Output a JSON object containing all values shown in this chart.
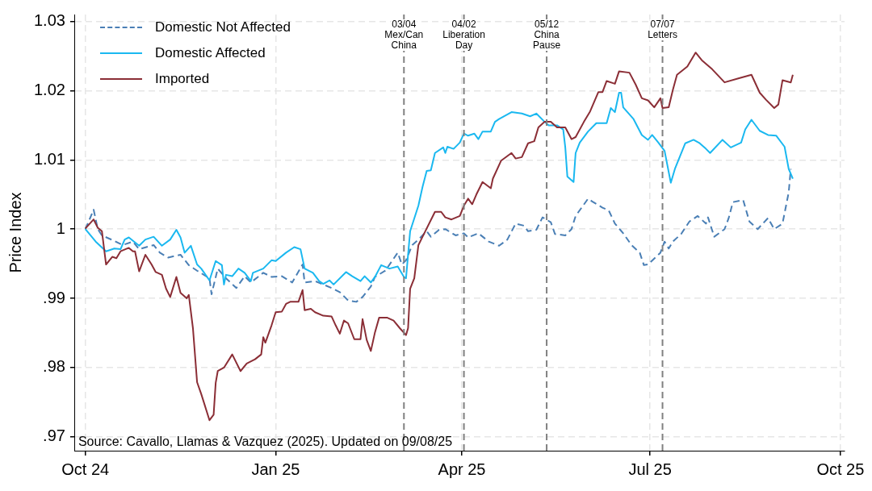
{
  "chart_data": {
    "type": "line",
    "ylabel": "Price Index",
    "xlim": [
      "2024-09-26",
      "2025-10-03"
    ],
    "ylim": [
      0.968,
      1.031
    ],
    "xticks": [
      {
        "value": "2024-10-01",
        "label": "Oct 24"
      },
      {
        "value": "2025-01-01",
        "label": "Jan 25"
      },
      {
        "value": "2025-04-01",
        "label": "Apr 25"
      },
      {
        "value": "2025-07-01",
        "label": "Jul 25"
      },
      {
        "value": "2025-10-01",
        "label": "Oct 25"
      }
    ],
    "yticks": [
      {
        "value": 0.97,
        "label": ".97"
      },
      {
        "value": 0.98,
        "label": ".98"
      },
      {
        "value": 0.99,
        "label": ".99"
      },
      1,
      1.01,
      1.02,
      1.03
    ],
    "grid": true,
    "legend": "top left",
    "marker": "none",
    "ref_lines": [
      {
        "axis": "x",
        "value": "2025-03-04",
        "label": "03/04\nMex/Can\nChina",
        "color": "#808080",
        "line_style": "dashed"
      },
      {
        "axis": "x",
        "value": "2025-04-02",
        "label": "04/02\nLiberation\nDay",
        "color": "#808080",
        "line_style": "dashed"
      },
      {
        "axis": "x",
        "value": "2025-05-12",
        "label": "05/12\nChina\nPause",
        "color": "#808080",
        "line_style": "dashed"
      },
      {
        "axis": "x",
        "value": "2025-07-07",
        "label": "07/07\nLetters",
        "color": "#808080",
        "line_style": "dashed"
      }
    ],
    "annotations": [
      "Source: Cavallo, Llamas & Vazquez (2025). Updated on 09/08/25"
    ],
    "series": [
      {
        "name": "Domestic Not Affected",
        "color": "#4a7fb5",
        "line_style": "dashed",
        "x": [
          "2024-10-01",
          "2024-10-05",
          "2024-10-07",
          "2024-10-09",
          "2024-10-15",
          "2024-10-19",
          "2024-10-24",
          "2024-10-27",
          "2024-11-03",
          "2024-11-06",
          "2024-11-10",
          "2024-11-16",
          "2024-11-20",
          "2024-11-24",
          "2024-11-30",
          "2024-12-01",
          "2024-12-04",
          "2024-12-08",
          "2024-12-13",
          "2024-12-17",
          "2024-12-20",
          "2024-12-26",
          "2024-12-30",
          "2025-01-04",
          "2025-01-09",
          "2025-01-14",
          "2025-01-15",
          "2025-01-20",
          "2025-01-28",
          "2025-02-01",
          "2025-02-05",
          "2025-02-09",
          "2025-02-12",
          "2025-02-16",
          "2025-02-18",
          "2025-02-23",
          "2025-03-01",
          "2025-03-03",
          "2025-03-05",
          "2025-03-08",
          "2025-03-11",
          "2025-03-15",
          "2025-03-17",
          "2025-03-21",
          "2025-03-24",
          "2025-03-29",
          "2025-04-02",
          "2025-04-04",
          "2025-04-09",
          "2025-04-14",
          "2025-04-19",
          "2025-04-23",
          "2025-04-27",
          "2025-05-01",
          "2025-05-03",
          "2025-05-07",
          "2025-05-10",
          "2025-05-14",
          "2025-05-16",
          "2025-05-21",
          "2025-05-24",
          "2025-05-26",
          "2025-06-01",
          "2025-06-03",
          "2025-06-08",
          "2025-06-11",
          "2025-06-14",
          "2025-06-18",
          "2025-06-22",
          "2025-06-26",
          "2025-06-28",
          "2025-06-30",
          "2025-07-06",
          "2025-07-08",
          "2025-07-10",
          "2025-07-12",
          "2025-07-16",
          "2025-07-20",
          "2025-07-24",
          "2025-07-28",
          "2025-07-29",
          "2025-08-01",
          "2025-08-06",
          "2025-08-08",
          "2025-08-10",
          "2025-08-15",
          "2025-08-18",
          "2025-08-22",
          "2025-08-27",
          "2025-08-30",
          "2025-09-03",
          "2025-09-06",
          "2025-09-07"
        ],
        "values": [
          1.0,
          1.0028,
          1.0,
          0.9991,
          0.9983,
          0.9977,
          0.9982,
          0.9971,
          0.9977,
          0.9966,
          0.9959,
          0.9963,
          0.9948,
          0.994,
          0.9929,
          0.9906,
          0.9943,
          0.9929,
          0.9915,
          0.9932,
          0.9923,
          0.9937,
          0.9931,
          0.9932,
          0.9923,
          0.9949,
          0.9923,
          0.9925,
          0.9915,
          0.9909,
          0.9897,
          0.9895,
          0.9902,
          0.9917,
          0.9931,
          0.994,
          0.9966,
          0.9949,
          0.9955,
          0.9977,
          0.9985,
          0.9997,
          0.9989,
          0.9999,
          1.0,
          0.9991,
          0.9994,
          0.9988,
          0.9994,
          0.9982,
          0.9976,
          0.9985,
          1.0008,
          1.0005,
          0.9997,
          0.9999,
          1.0017,
          1.001,
          0.9993,
          0.9991,
          1.0,
          1.0019,
          1.0044,
          1.004,
          1.0031,
          1.0027,
          1.0008,
          0.9994,
          0.9977,
          0.9966,
          0.9948,
          0.9949,
          0.9966,
          0.9982,
          0.9972,
          0.9982,
          0.9993,
          1.0011,
          1.0019,
          1.0008,
          1.0017,
          0.9989,
          1.0,
          1.0016,
          1.0039,
          1.0042,
          1.0011,
          1.0,
          1.0016,
          1.0,
          1.0008,
          1.0053,
          1.0087
        ]
      },
      {
        "name": "Domestic Affected",
        "color": "#1ab8f0",
        "x": [
          "2024-10-01",
          "2024-10-06",
          "2024-10-11",
          "2024-10-15",
          "2024-10-18",
          "2024-10-20",
          "2024-10-22",
          "2024-10-27",
          "2024-10-30",
          "2024-11-03",
          "2024-11-07",
          "2024-11-11",
          "2024-11-14",
          "2024-11-16",
          "2024-11-18",
          "2024-11-21",
          "2024-11-24",
          "2024-11-26",
          "2024-11-30",
          "2024-12-03",
          "2024-12-06",
          "2024-12-07",
          "2024-12-08",
          "2024-12-11",
          "2024-12-14",
          "2024-12-17",
          "2024-12-20",
          "2024-12-21",
          "2024-12-26",
          "2024-12-30",
          "2025-01-01",
          "2025-01-06",
          "2025-01-10",
          "2025-01-13",
          "2025-01-15",
          "2025-01-19",
          "2025-01-22",
          "2025-01-24",
          "2025-01-27",
          "2025-01-29",
          "2025-02-04",
          "2025-02-07",
          "2025-02-11",
          "2025-02-13",
          "2025-02-16",
          "2025-02-18",
          "2025-02-21",
          "2025-02-25",
          "2025-03-01",
          "2025-03-04",
          "2025-03-05",
          "2025-03-07",
          "2025-03-11",
          "2025-03-13",
          "2025-03-15",
          "2025-03-17",
          "2025-03-19",
          "2025-03-23",
          "2025-03-24",
          "2025-03-25",
          "2025-03-28",
          "2025-03-31",
          "2025-04-02",
          "2025-04-04",
          "2025-04-07",
          "2025-04-09",
          "2025-04-11",
          "2025-04-15",
          "2025-04-17",
          "2025-04-19",
          "2025-04-25",
          "2025-04-30",
          "2025-05-04",
          "2025-05-07",
          "2025-05-11",
          "2025-05-13",
          "2025-05-17",
          "2025-05-20",
          "2025-05-21",
          "2025-05-22",
          "2025-05-25",
          "2025-05-26",
          "2025-05-28",
          "2025-06-01",
          "2025-06-05",
          "2025-06-10",
          "2025-06-12",
          "2025-06-14",
          "2025-06-16",
          "2025-06-17",
          "2025-06-18",
          "2025-06-23",
          "2025-06-27",
          "2025-06-30",
          "2025-07-02",
          "2025-07-05",
          "2025-07-08",
          "2025-07-11",
          "2025-07-13",
          "2025-07-18",
          "2025-07-22",
          "2025-07-25",
          "2025-07-28",
          "2025-07-30",
          "2025-08-05",
          "2025-08-09",
          "2025-08-14",
          "2025-08-16",
          "2025-08-19",
          "2025-08-23",
          "2025-08-27",
          "2025-08-31",
          "2025-09-04",
          "2025-09-06",
          "2025-09-08"
        ],
        "values": [
          1.0,
          0.9982,
          0.9968,
          0.9972,
          0.9971,
          0.9985,
          0.9988,
          0.9976,
          0.9985,
          0.9989,
          0.9976,
          0.9985,
          0.9999,
          0.9988,
          0.9966,
          0.9976,
          0.9949,
          0.9943,
          0.9926,
          0.9954,
          0.9948,
          0.992,
          0.9934,
          0.9932,
          0.9943,
          0.9937,
          0.9925,
          0.9937,
          0.9943,
          0.9955,
          0.9954,
          0.9966,
          0.9974,
          0.9971,
          0.9943,
          0.9937,
          0.9925,
          0.9921,
          0.9926,
          0.992,
          0.9938,
          0.9932,
          0.9925,
          0.9932,
          0.9923,
          0.9931,
          0.9948,
          0.9943,
          0.9946,
          0.9931,
          0.9929,
          0.9997,
          1.0034,
          1.0061,
          1.0084,
          1.0085,
          1.011,
          1.0118,
          1.011,
          1.0119,
          1.0116,
          1.0125,
          1.0138,
          1.0135,
          1.0138,
          1.013,
          1.0141,
          1.0141,
          1.0155,
          1.0159,
          1.0169,
          1.0167,
          1.0163,
          1.0167,
          1.0155,
          1.015,
          1.015,
          1.0144,
          1.0118,
          1.0076,
          1.0068,
          1.011,
          1.0125,
          1.0141,
          1.0153,
          1.0153,
          1.0175,
          1.0169,
          1.0197,
          1.0197,
          1.0176,
          1.0159,
          1.0136,
          1.0129,
          1.0136,
          1.0125,
          1.0113,
          1.0067,
          1.0087,
          1.0124,
          1.0129,
          1.0124,
          1.0116,
          1.011,
          1.0129,
          1.0118,
          1.0125,
          1.0144,
          1.0158,
          1.0142,
          1.0136,
          1.0135,
          1.0119,
          1.0087,
          1.0073
        ]
      },
      {
        "name": "Imported",
        "color": "#8b2e36",
        "x": [
          "2024-10-01",
          "2024-10-05",
          "2024-10-07",
          "2024-10-09",
          "2024-10-11",
          "2024-10-14",
          "2024-10-16",
          "2024-10-18",
          "2024-10-22",
          "2024-10-24",
          "2024-10-25",
          "2024-10-27",
          "2024-10-30",
          "2024-11-02",
          "2024-11-04",
          "2024-11-07",
          "2024-11-09",
          "2024-11-11",
          "2024-11-14",
          "2024-11-16",
          "2024-11-19",
          "2024-11-20",
          "2024-11-22",
          "2024-11-24",
          "2024-11-26",
          "2024-11-30",
          "2024-12-02",
          "2024-12-03",
          "2024-12-04",
          "2024-12-07",
          "2024-12-11",
          "2024-12-15",
          "2024-12-18",
          "2024-12-22",
          "2024-12-25",
          "2024-12-26",
          "2024-12-27",
          "2024-12-30",
          "2025-01-01",
          "2025-01-04",
          "2025-01-06",
          "2025-01-08",
          "2025-01-12",
          "2025-01-14",
          "2025-01-15",
          "2025-01-18",
          "2025-01-20",
          "2025-01-24",
          "2025-01-28",
          "2025-01-30",
          "2025-02-01",
          "2025-02-03",
          "2025-02-05",
          "2025-02-08",
          "2025-02-11",
          "2025-02-12",
          "2025-02-14",
          "2025-02-16",
          "2025-02-18",
          "2025-02-20",
          "2025-02-24",
          "2025-02-27",
          "2025-03-02",
          "2025-03-05",
          "2025-03-06",
          "2025-03-07",
          "2025-03-09",
          "2025-03-11",
          "2025-03-13",
          "2025-03-19",
          "2025-03-22",
          "2025-03-24",
          "2025-03-27",
          "2025-03-31",
          "2025-04-02",
          "2025-04-04",
          "2025-04-06",
          "2025-04-08",
          "2025-04-11",
          "2025-04-15",
          "2025-04-16",
          "2025-04-20",
          "2025-04-25",
          "2025-04-27",
          "2025-04-30",
          "2025-05-03",
          "2025-05-06",
          "2025-05-08",
          "2025-05-11",
          "2025-05-14",
          "2025-05-17",
          "2025-05-21",
          "2025-05-24",
          "2025-05-26",
          "2025-05-30",
          "2025-06-02",
          "2025-06-06",
          "2025-06-08",
          "2025-06-10",
          "2025-06-14",
          "2025-06-16",
          "2025-06-21",
          "2025-06-24",
          "2025-06-27",
          "2025-06-30",
          "2025-07-03",
          "2025-07-06",
          "2025-07-07",
          "2025-07-10",
          "2025-07-12",
          "2025-07-14",
          "2025-07-19",
          "2025-07-23",
          "2025-07-26",
          "2025-07-31",
          "2025-08-06",
          "2025-08-13",
          "2025-08-19",
          "2025-08-23",
          "2025-08-26",
          "2025-08-30",
          "2025-09-01",
          "2025-09-03",
          "2025-09-07",
          "2025-09-08"
        ],
        "values": [
          1.0001,
          1.0014,
          1.0002,
          0.9997,
          0.9949,
          0.996,
          0.9958,
          0.9968,
          0.9973,
          0.9968,
          0.9968,
          0.9939,
          0.9963,
          0.9949,
          0.9938,
          0.9934,
          0.9914,
          0.9902,
          0.9931,
          0.9908,
          0.99,
          0.9905,
          0.9857,
          0.9779,
          0.9762,
          0.9724,
          0.9732,
          0.9778,
          0.9795,
          0.98,
          0.9819,
          0.9795,
          0.9806,
          0.9812,
          0.9819,
          0.9844,
          0.9836,
          0.9861,
          0.988,
          0.9881,
          0.9892,
          0.9895,
          0.9895,
          0.9912,
          0.9883,
          0.9885,
          0.988,
          0.9875,
          0.9874,
          0.9861,
          0.9849,
          0.9868,
          0.9864,
          0.9841,
          0.9841,
          0.987,
          0.984,
          0.9824,
          0.9851,
          0.9872,
          0.9872,
          0.9868,
          0.9857,
          0.9847,
          0.9857,
          0.9914,
          0.9929,
          0.9977,
          0.9989,
          1.0025,
          1.0025,
          1.0017,
          1.0014,
          1.0019,
          1.0034,
          1.0044,
          1.0036,
          1.005,
          1.0068,
          1.0059,
          1.0073,
          1.0099,
          1.011,
          1.0102,
          1.0104,
          1.0124,
          1.0127,
          1.0147,
          1.0155,
          1.0155,
          1.0147,
          1.0147,
          1.013,
          1.0133,
          1.0155,
          1.017,
          1.0198,
          1.0198,
          1.0214,
          1.021,
          1.0228,
          1.0226,
          1.0209,
          1.0189,
          1.0186,
          1.0176,
          1.0189,
          1.0175,
          1.0176,
          1.0201,
          1.0223,
          1.0235,
          1.0255,
          1.0244,
          1.0231,
          1.0212,
          1.0218,
          1.0223,
          1.0197,
          1.0187,
          1.0175,
          1.018,
          1.0215,
          1.0212,
          1.0223
        ]
      }
    ]
  }
}
